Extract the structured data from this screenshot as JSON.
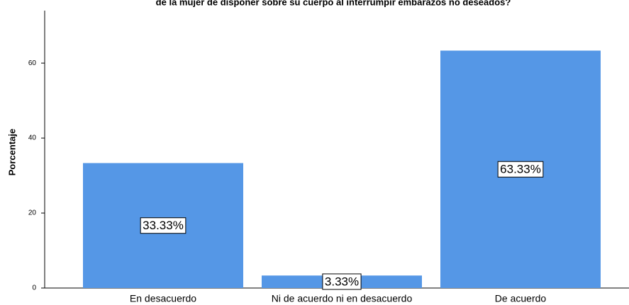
{
  "chart_data": {
    "type": "bar",
    "title": "de la mujer de disponer sobre su cuerpo al interrumpir embarazos no deseados?",
    "y_label": "Porcentaje",
    "categories": [
      "En desacuerdo",
      "Ni de acuerdo ni en desacuerdo",
      "De acuerdo"
    ],
    "values": [
      33.33,
      3.33,
      63.33
    ],
    "value_labels": [
      "33.33%",
      "3.33%",
      "63.33%"
    ],
    "color": "#5597e6",
    "ylim": [
      0,
      74
    ],
    "yticks": [
      0,
      20,
      40,
      60
    ],
    "grid": false
  }
}
